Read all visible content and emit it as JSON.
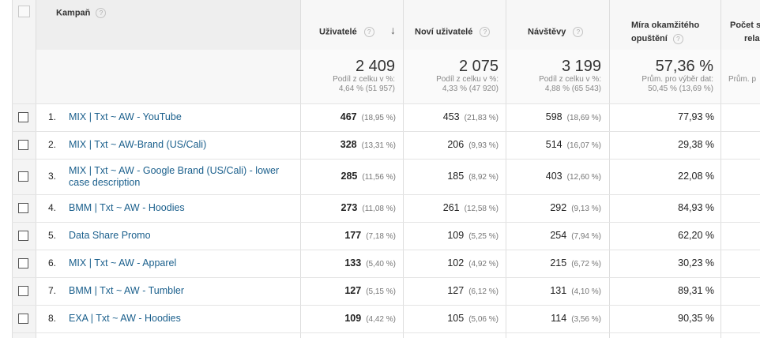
{
  "header": {
    "campaign": "Kampaň",
    "users": "Uživatelé",
    "new_users": "Noví uživatelé",
    "sessions": "Návštěvy",
    "bounce_line1": "Míra okamžitého",
    "bounce_line2": "opuštění",
    "pages_line1": "Počet st",
    "pages_line2": "rela",
    "help_glyph": "?",
    "sort_glyph": "↓"
  },
  "totals": {
    "users": {
      "value": "2 409",
      "line1": "Podíl z celku v %:",
      "line2": "4,64 % (51 957)"
    },
    "new_users": {
      "value": "2 075",
      "line1": "Podíl z celku v %:",
      "line2": "4,33 % (47 920)"
    },
    "sessions": {
      "value": "3 199",
      "line1": "Podíl z celku v %:",
      "line2": "4,88 % (65 543)"
    },
    "bounce": {
      "value": "57,36 %",
      "line1": "Prům. pro výběr dat:",
      "line2": "50,45 % (13,69 %)"
    },
    "pages": {
      "line1": "Prům. p"
    }
  },
  "rows": [
    {
      "num": "1.",
      "campaign": "MIX | Txt ~ AW - YouTube",
      "users": "467",
      "users_pct": "(18,95 %)",
      "new_users": "453",
      "new_users_pct": "(21,83 %)",
      "sessions": "598",
      "sessions_pct": "(18,69 %)",
      "bounce": "77,93 %"
    },
    {
      "num": "2.",
      "campaign": "MIX | Txt ~ AW-Brand (US/Cali)",
      "users": "328",
      "users_pct": "(13,31 %)",
      "new_users": "206",
      "new_users_pct": "(9,93 %)",
      "sessions": "514",
      "sessions_pct": "(16,07 %)",
      "bounce": "29,38 %"
    },
    {
      "num": "3.",
      "campaign": "MIX | Txt ~ AW - Google Brand (US/Cali) - lower case description",
      "users": "285",
      "users_pct": "(11,56 %)",
      "new_users": "185",
      "new_users_pct": "(8,92 %)",
      "sessions": "403",
      "sessions_pct": "(12,60 %)",
      "bounce": "22,08 %"
    },
    {
      "num": "4.",
      "campaign": "BMM | Txt ~ AW - Hoodies",
      "users": "273",
      "users_pct": "(11,08 %)",
      "new_users": "261",
      "new_users_pct": "(12,58 %)",
      "sessions": "292",
      "sessions_pct": "(9,13 %)",
      "bounce": "84,93 %"
    },
    {
      "num": "5.",
      "campaign": "Data Share Promo",
      "users": "177",
      "users_pct": "(7,18 %)",
      "new_users": "109",
      "new_users_pct": "(5,25 %)",
      "sessions": "254",
      "sessions_pct": "(7,94 %)",
      "bounce": "62,20 %"
    },
    {
      "num": "6.",
      "campaign": "MIX | Txt ~ AW - Apparel",
      "users": "133",
      "users_pct": "(5,40 %)",
      "new_users": "102",
      "new_users_pct": "(4,92 %)",
      "sessions": "215",
      "sessions_pct": "(6,72 %)",
      "bounce": "30,23 %"
    },
    {
      "num": "7.",
      "campaign": "BMM | Txt ~ AW - Tumbler",
      "users": "127",
      "users_pct": "(5,15 %)",
      "new_users": "127",
      "new_users_pct": "(6,12 %)",
      "sessions": "131",
      "sessions_pct": "(4,10 %)",
      "bounce": "89,31 %"
    },
    {
      "num": "8.",
      "campaign": "EXA | Txt ~ AW - Hoodies",
      "users": "109",
      "users_pct": "(4,42 %)",
      "new_users": "105",
      "new_users_pct": "(5,06 %)",
      "sessions": "114",
      "sessions_pct": "(3,56 %)",
      "bounce": "90,35 %"
    }
  ]
}
